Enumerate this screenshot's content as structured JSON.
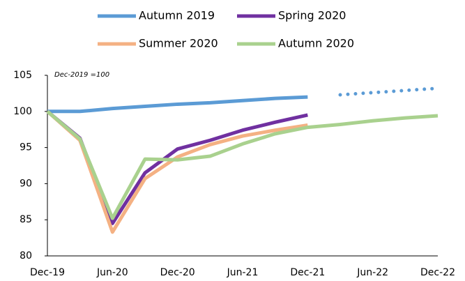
{
  "chart_data": {
    "type": "line",
    "annotation": "Dec-2019  =100",
    "categories": [
      "Dec-19",
      null,
      "Jun-20",
      null,
      "Dec-20",
      null,
      "Jun-21",
      null,
      "Dec-21",
      null,
      "Jun-22",
      null,
      "Dec-22"
    ],
    "series": [
      {
        "name": "Autumn 2019",
        "color": "#5b9bd5",
        "dotted_from": 8,
        "values": [
          100,
          100,
          100.4,
          100.7,
          101,
          101.2,
          101.5,
          101.8,
          102,
          102.3,
          102.6,
          102.9,
          103.2
        ]
      },
      {
        "name": "Spring 2020",
        "color": "#7030a0",
        "values": [
          100,
          96.3,
          84.5,
          91.5,
          94.8,
          96,
          97.4,
          98.5,
          99.5,
          null,
          null,
          null,
          null
        ]
      },
      {
        "name": "Summer 2020",
        "color": "#f4b183",
        "values": [
          100,
          96,
          83.3,
          90.7,
          93.7,
          95.4,
          96.6,
          97.4,
          98.1,
          null,
          null,
          null,
          null
        ]
      },
      {
        "name": "Autumn 2020",
        "color": "#a9d18e",
        "values": [
          100,
          96.2,
          85.2,
          93.4,
          93.3,
          93.8,
          95.5,
          96.9,
          97.8,
          98.2,
          98.7,
          99.1,
          99.4
        ]
      }
    ],
    "ylim": [
      80,
      105
    ],
    "yticks": [
      80,
      85,
      90,
      95,
      100,
      105
    ],
    "grid": false
  }
}
